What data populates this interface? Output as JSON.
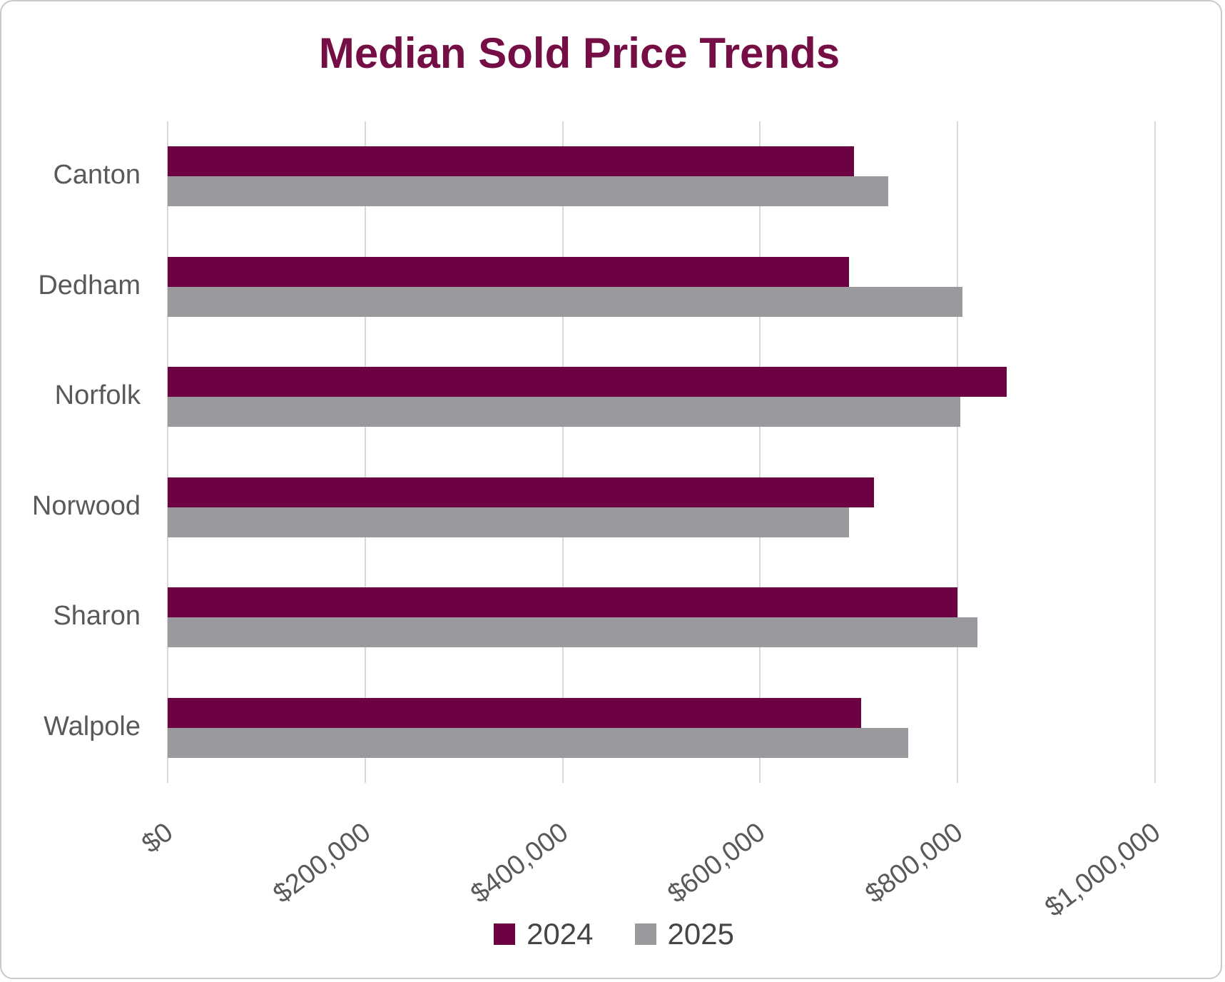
{
  "title": "Median Sold Price Trends",
  "colors": {
    "title": "#740E45",
    "series_2024": "#6C0242",
    "series_2025": "#9A999D",
    "gridline": "#d8d8d8",
    "axis_text": "#595959",
    "legend_text": "#454545",
    "card_border": "#c9c9c9",
    "background": "#ffffff"
  },
  "chart_data": {
    "type": "bar",
    "orientation": "horizontal",
    "title": "Median Sold Price Trends",
    "xlabel": "",
    "ylabel": "",
    "categories": [
      "Canton",
      "Dedham",
      "Norfolk",
      "Norwood",
      "Sharon",
      "Walpole"
    ],
    "series": [
      {
        "name": "2024",
        "color": "#6C0242",
        "values": [
          695000,
          690000,
          850000,
          715000,
          800000,
          702500
        ]
      },
      {
        "name": "2025",
        "color": "#9A999D",
        "values": [
          730000,
          805000,
          802500,
          690000,
          820000,
          750000
        ]
      }
    ],
    "xlim": [
      0,
      1000000
    ],
    "x_tick_values": [
      0,
      200000,
      400000,
      600000,
      800000,
      1000000
    ],
    "x_tick_labels": [
      "$0",
      "$200,000",
      "$400,000",
      "$600,000",
      "$800,000",
      "$1,000,000"
    ],
    "grid": true,
    "legend_position": "bottom"
  },
  "legend": {
    "items": [
      {
        "label": "2024",
        "color": "#6C0242"
      },
      {
        "label": "2025",
        "color": "#9A999D"
      }
    ]
  }
}
